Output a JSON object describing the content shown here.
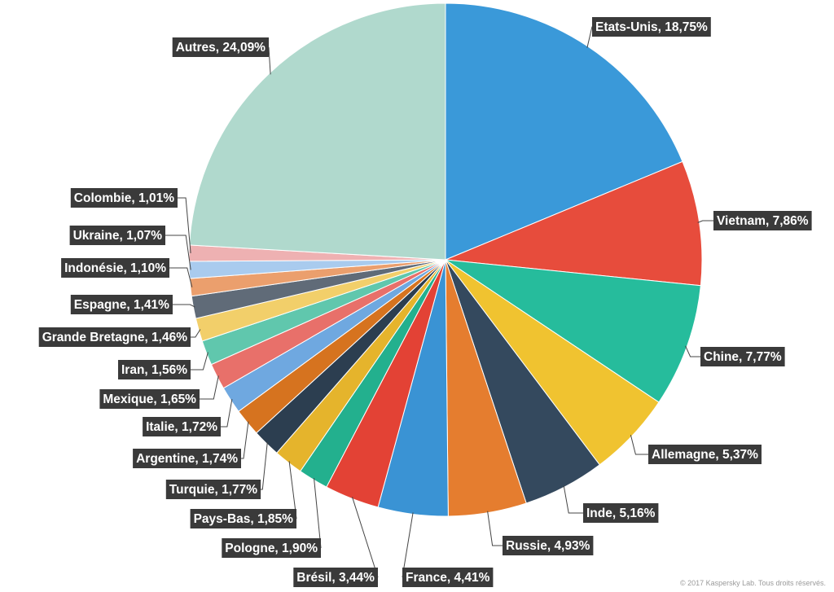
{
  "chart_data": {
    "type": "pie",
    "slices": [
      {
        "label": "Etats-Unis",
        "value": 18.75,
        "text": "Etats-Unis, 18,75%",
        "color": "#3a99d9"
      },
      {
        "label": "Vietnam",
        "value": 7.86,
        "text": "Vietnam, 7,86%",
        "color": "#e74c3c"
      },
      {
        "label": "Chine",
        "value": 7.77,
        "text": "Chine, 7,77%",
        "color": "#26bc9c"
      },
      {
        "label": "Allemagne",
        "value": 5.37,
        "text": "Allemagne, 5,37%",
        "color": "#f0c330"
      },
      {
        "label": "Inde",
        "value": 5.16,
        "text": "Inde, 5,16%",
        "color": "#34495e"
      },
      {
        "label": "Russie",
        "value": 4.93,
        "text": "Russie, 4,93%",
        "color": "#e57d2f"
      },
      {
        "label": "France",
        "value": 4.41,
        "text": "France, 4,41%",
        "color": "#3a93d4"
      },
      {
        "label": "Brésil",
        "value": 3.44,
        "text": "Brésil, 3,44%",
        "color": "#e34235"
      },
      {
        "label": "Pologne",
        "value": 1.9,
        "text": "Pologne, 1,90%",
        "color": "#23b08e"
      },
      {
        "label": "Pays-Bas",
        "value": 1.85,
        "text": "Pays-Bas, 1,85%",
        "color": "#e5b42c"
      },
      {
        "label": "Turquie",
        "value": 1.77,
        "text": "Turquie, 1,77%",
        "color": "#2c3e50"
      },
      {
        "label": "Argentine",
        "value": 1.74,
        "text": "Argentine, 1,74%",
        "color": "#d6731f"
      },
      {
        "label": "Italie",
        "value": 1.72,
        "text": "Italie, 1,72%",
        "color": "#6fa8e0"
      },
      {
        "label": "Mexique",
        "value": 1.65,
        "text": "Mexique, 1,65%",
        "color": "#e8706a"
      },
      {
        "label": "Iran",
        "value": 1.56,
        "text": "Iran, 1,56%",
        "color": "#60c7ad"
      },
      {
        "label": "Grande Bretagne",
        "value": 1.46,
        "text": "Grande Bretagne, 1,46%",
        "color": "#f2cf6a"
      },
      {
        "label": "Espagne",
        "value": 1.41,
        "text": "Espagne, 1,41%",
        "color": "#606b78"
      },
      {
        "label": "Indonésie",
        "value": 1.1,
        "text": "Indonésie, 1,10%",
        "color": "#eb9f6d"
      },
      {
        "label": "Ukraine",
        "value": 1.07,
        "text": "Ukraine, 1,07%",
        "color": "#a9cbee"
      },
      {
        "label": "Colombie",
        "value": 1.01,
        "text": "Colombie, 1,01%",
        "color": "#eeb1b2"
      },
      {
        "label": "Autres",
        "value": 24.09,
        "text": "Autres, 24,09%",
        "color": "#b0d9cd"
      }
    ],
    "title": "",
    "legend": "none"
  },
  "copyright": "© 2017 Kaspersky Lab. Tous droits réservés."
}
